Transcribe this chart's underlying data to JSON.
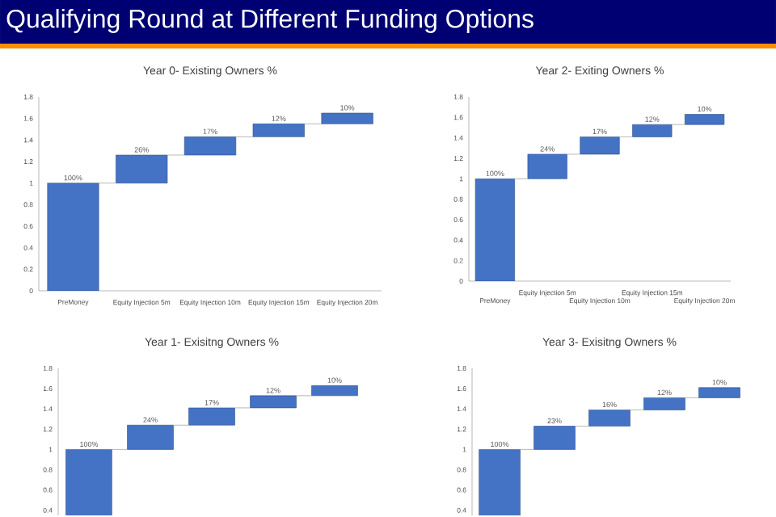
{
  "chart_data": [
    {
      "type": "bar",
      "title": "Year 0- Existing Owners %",
      "annotations": [
        "Qualifying Round at Different Funding Options"
      ],
      "categories": [
        "PreMoney",
        "Equity Injection 5m",
        "Equity Injection 10m",
        "Equity Injection 15m",
        "Equity Injection 20m"
      ],
      "values": [
        1,
        0.26,
        0.17,
        0.12,
        0.1
      ],
      "base": [
        0,
        1,
        1.26,
        1.43,
        1.55
      ],
      "value_labels": [
        "100%",
        "26%",
        "17%",
        "12%",
        "10%"
      ],
      "color": "#4472c4",
      "ylim": [
        0,
        1.8
      ],
      "yticks": [
        0,
        0.2,
        0.4,
        0.6,
        0.8,
        1,
        1.2,
        1.4,
        1.6,
        1.8
      ]
    },
    {
      "type": "bar",
      "title": "Year 2- Exiting Owners %",
      "categories": [
        "PreMoney",
        "Equity Injection 5m",
        "Equity Injection 10m",
        "Equity Injection 15m",
        "Equity Injection 20m"
      ],
      "values": [
        1,
        0.24,
        0.17,
        0.12,
        0.1
      ],
      "base": [
        0,
        1,
        1.24,
        1.41,
        1.53
      ],
      "value_labels": [
        "100%",
        "24%",
        "17%",
        "12%",
        "10%"
      ],
      "color": "#4472c4",
      "ylim": [
        0,
        1.8
      ],
      "yticks": [
        0,
        0.2,
        0.4,
        0.6,
        0.8,
        1,
        1.2,
        1.4,
        1.6,
        1.8
      ]
    },
    {
      "type": "bar",
      "title": "Year 1- Exisitng Owners %",
      "categories": [
        null,
        null,
        null,
        null,
        null
      ],
      "values": [
        1,
        0.24,
        0.17,
        0.12,
        0.1
      ],
      "base": [
        0,
        1,
        1.24,
        1.41,
        1.53
      ],
      "value_labels": [
        "100%",
        "24%",
        "17%",
        "12%",
        "10%"
      ],
      "color": "#4472c4",
      "ylim": [
        0.35,
        1.8
      ],
      "yticks": [
        0.4,
        0.6,
        0.8,
        1,
        1.2,
        1.4,
        1.6,
        1.8
      ],
      "tick_labels": "y"
    },
    {
      "type": "bar",
      "title": "Year 3- Exisitng Owners %",
      "categories": [
        null,
        null,
        null,
        null,
        null
      ],
      "values": [
        1,
        0.23,
        0.16,
        0.12,
        0.1
      ],
      "base": [
        0,
        1,
        1.23,
        1.39,
        1.51
      ],
      "value_labels": [
        "100%",
        "23%",
        "16%",
        "12%",
        "10%"
      ],
      "color": "#4472c4",
      "ylim": [
        0.35,
        1.8
      ],
      "yticks": [
        0.4,
        0.6,
        0.8,
        1,
        1.2,
        1.4,
        1.6,
        1.8
      ],
      "tick_labels": "y"
    }
  ]
}
